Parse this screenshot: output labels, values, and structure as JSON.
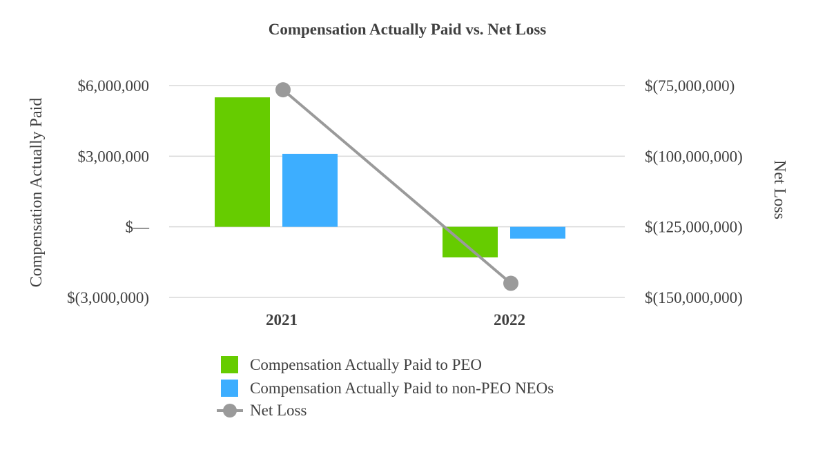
{
  "chart_data": {
    "type": "bar",
    "title": "Compensation Actually Paid vs. Net Loss",
    "categories": [
      "2021",
      "2022"
    ],
    "series": [
      {
        "name": "Compensation Actually Paid to PEO",
        "kind": "bar",
        "axis": "left",
        "color": "#66cc00",
        "values": [
          5500000,
          -1300000
        ]
      },
      {
        "name": "Compensation Actually Paid to non-PEO NEOs",
        "kind": "bar",
        "axis": "left",
        "color": "#3daeff",
        "values": [
          3100000,
          -500000
        ]
      },
      {
        "name": "Net Loss",
        "kind": "line",
        "axis": "right",
        "color": "#9a9a9a",
        "values": [
          -76500000,
          -145000000
        ]
      }
    ],
    "y_left": {
      "label": "Compensation Actually Paid",
      "ylim": [
        -3000000,
        6000000
      ],
      "ticks": [
        6000000,
        3000000,
        0,
        -3000000
      ],
      "tick_labels": [
        "$6,000,000",
        "$3,000,000",
        "$—",
        "$(3,000,000)"
      ]
    },
    "y_right": {
      "label": "Net Loss",
      "ylim": [
        -150000000,
        -75000000
      ],
      "ticks": [
        -75000000,
        -100000000,
        -125000000,
        -150000000
      ],
      "tick_labels": [
        "$(75,000,000)",
        "$(100,000,000)",
        "$(125,000,000)",
        "$(150,000,000)"
      ]
    },
    "grid": true,
    "legend_position": "bottom"
  }
}
